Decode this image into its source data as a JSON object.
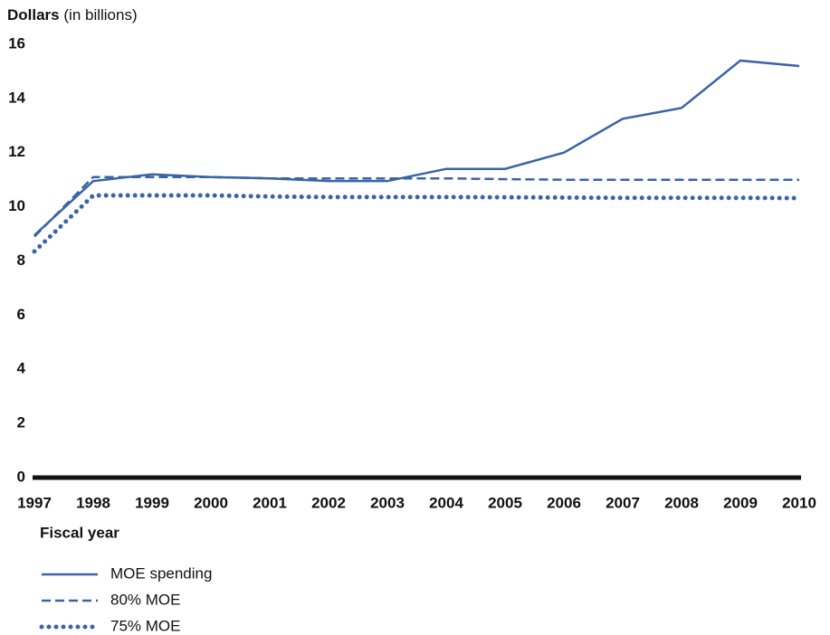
{
  "chart_data": {
    "type": "line",
    "ylabel": "Dollars",
    "ylabel_note": "(in billions)",
    "xlabel": "Fiscal year",
    "categories": [
      "1997",
      "1998",
      "1999",
      "2000",
      "2001",
      "2002",
      "2003",
      "2004",
      "2005",
      "2006",
      "2007",
      "2008",
      "2009",
      "2010"
    ],
    "ylim": [
      0,
      16
    ],
    "yticks": [
      0,
      2,
      4,
      6,
      8,
      10,
      12,
      14,
      16
    ],
    "grid": false,
    "series": [
      {
        "name": "MOE spending",
        "color": "#3a64a6",
        "style": "solid",
        "values": [
          8.95,
          10.95,
          11.2,
          11.1,
          11.05,
          10.95,
          10.95,
          11.4,
          11.4,
          12.0,
          13.25,
          13.65,
          15.4,
          15.2
        ]
      },
      {
        "name": "80% MOE",
        "color": "#3a64a6",
        "style": "dashed",
        "values": [
          8.9,
          11.1,
          11.1,
          11.1,
          11.05,
          11.05,
          11.05,
          11.05,
          11.02,
          11.0,
          11.0,
          11.0,
          11.0,
          11.0
        ]
      },
      {
        "name": "75% MOE",
        "color": "#3a64a6",
        "style": "dotted",
        "values": [
          8.35,
          10.42,
          10.42,
          10.42,
          10.38,
          10.36,
          10.36,
          10.36,
          10.35,
          10.34,
          10.33,
          10.33,
          10.33,
          10.32
        ]
      }
    ]
  }
}
